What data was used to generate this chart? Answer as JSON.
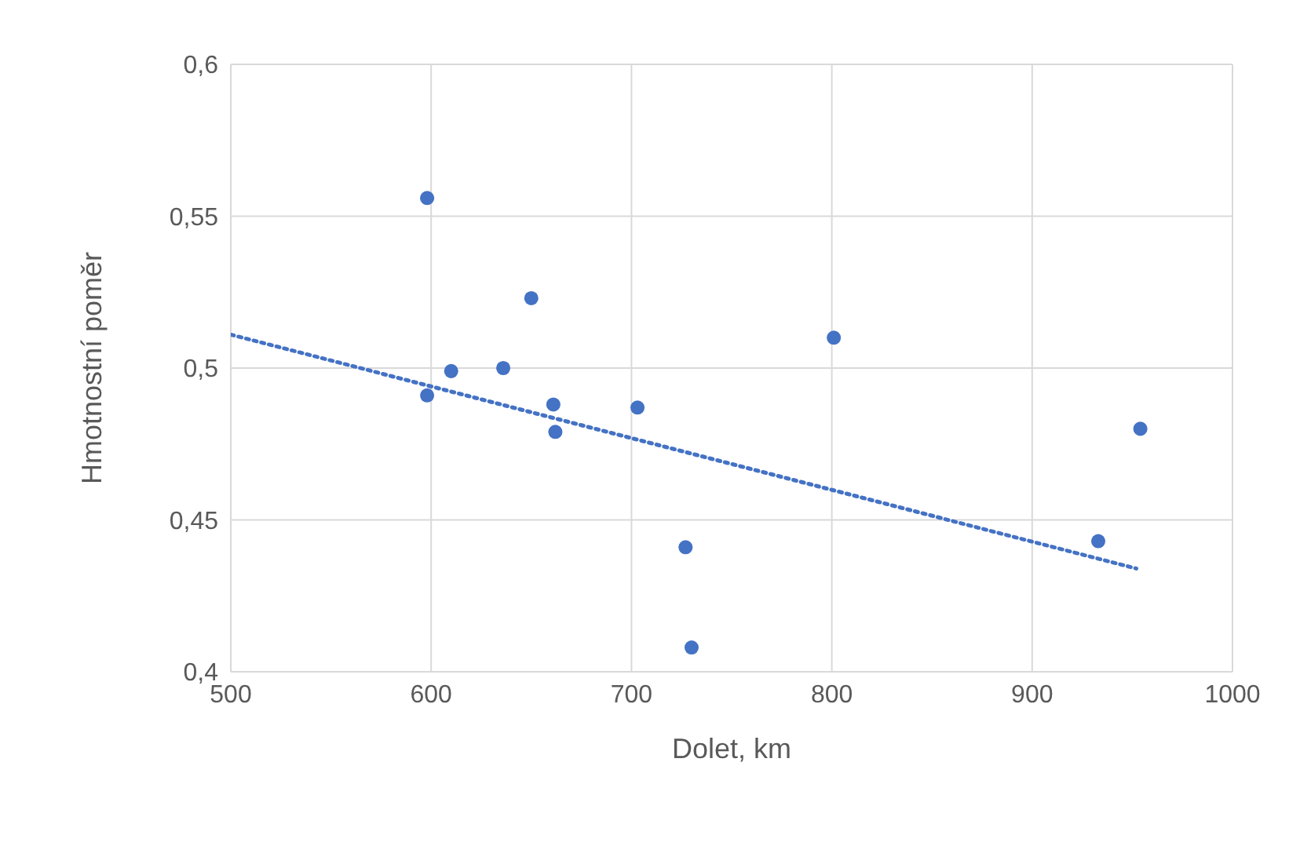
{
  "chart_data": {
    "type": "scatter",
    "xlabel": "Dolet, km",
    "ylabel": "Hmotnostní poměr",
    "xlim": [
      500,
      1000
    ],
    "xticks": [
      500,
      600,
      700,
      800,
      900,
      1000
    ],
    "ylim": [
      0.4,
      0.6
    ],
    "yticks": [
      {
        "value": 0.4,
        "label": "0,4"
      },
      {
        "value": 0.45,
        "label": "0,45"
      },
      {
        "value": 0.5,
        "label": "0,5"
      },
      {
        "value": 0.55,
        "label": "0,55"
      },
      {
        "value": 0.6,
        "label": "0,6"
      }
    ],
    "grid": true,
    "series": [
      {
        "color": "#4472c4",
        "marker": "circle",
        "x": [
          598,
          598,
          610,
          636,
          650,
          661,
          662,
          703,
          727,
          730,
          801,
          933,
          954
        ],
        "values": [
          0.556,
          0.491,
          0.499,
          0.5,
          0.523,
          0.488,
          0.479,
          0.487,
          0.441,
          0.408,
          0.51,
          0.443,
          0.48
        ]
      },
      {
        "type": "line",
        "color": "#4472c4",
        "marker": "none",
        "line_style": "dotted",
        "x": [
          500,
          952
        ],
        "values": [
          0.511,
          0.434
        ]
      }
    ]
  }
}
